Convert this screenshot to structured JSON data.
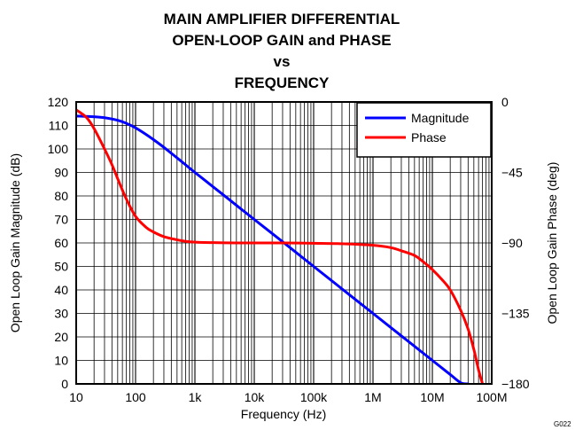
{
  "chart_data": {
    "type": "line",
    "title_lines": [
      "MAIN AMPLIFIER DIFFERENTIAL",
      "OPEN-LOOP GAIN and PHASE",
      "vs",
      "FREQUENCY"
    ],
    "xlabel": "Frequency (Hz)",
    "ylabel_left": "Open Loop Gain Magnitude (dB)",
    "ylabel_right": "Open Loop Gain Phase (deg)",
    "xscale": "log",
    "xlim": [
      10,
      100000000
    ],
    "ylim_left": [
      0,
      120
    ],
    "ylim_right": [
      -180,
      0
    ],
    "x_tick_labels": [
      "10",
      "100",
      "1k",
      "10k",
      "100k",
      "1M",
      "10M",
      "100M"
    ],
    "y_left_tick_labels": [
      "0",
      "10",
      "20",
      "30",
      "40",
      "50",
      "60",
      "70",
      "80",
      "90",
      "100",
      "110",
      "120"
    ],
    "y_right_tick_labels": [
      "0",
      "−45",
      "−90",
      "−135",
      "−180"
    ],
    "grid": true,
    "legend_position": "top-right",
    "figure_id": "G022",
    "series": [
      {
        "name": "Magnitude",
        "axis": "left",
        "color": "#0000ff",
        "x": [
          10,
          20,
          30,
          50,
          70,
          100,
          150,
          200,
          300,
          500,
          700,
          1000,
          2000,
          3000,
          5000,
          10000,
          30000,
          100000,
          1000000,
          10000000,
          20000000,
          30000000,
          40000000
        ],
        "y": [
          114,
          113.7,
          113.3,
          112.2,
          110.9,
          109.0,
          106.2,
          104.0,
          100.7,
          96.2,
          93.2,
          90.0,
          84.0,
          80.5,
          76.0,
          70.0,
          60.5,
          50.0,
          30.0,
          10.0,
          4.0,
          0.5,
          0
        ]
      },
      {
        "name": "Phase",
        "axis": "right",
        "color": "#ff0000",
        "x": [
          10,
          15,
          20,
          30,
          40,
          50,
          70,
          100,
          150,
          200,
          300,
          500,
          700,
          1000,
          2000,
          5000,
          10000,
          30000,
          100000,
          300000,
          1000000,
          2000000,
          3000000,
          5000000,
          7000000,
          10000000,
          15000000,
          20000000,
          30000000,
          40000000,
          50000000,
          60000000,
          70000000
        ],
        "y": [
          -5,
          -10,
          -17,
          -30,
          -40,
          -49,
          -62,
          -73,
          -80,
          -83,
          -86,
          -88,
          -89,
          -89.5,
          -89.8,
          -90,
          -90,
          -90,
          -90.2,
          -90.5,
          -91.5,
          -93,
          -95,
          -98,
          -102,
          -107,
          -114,
          -120,
          -133,
          -145,
          -158,
          -171,
          -180
        ]
      }
    ]
  }
}
